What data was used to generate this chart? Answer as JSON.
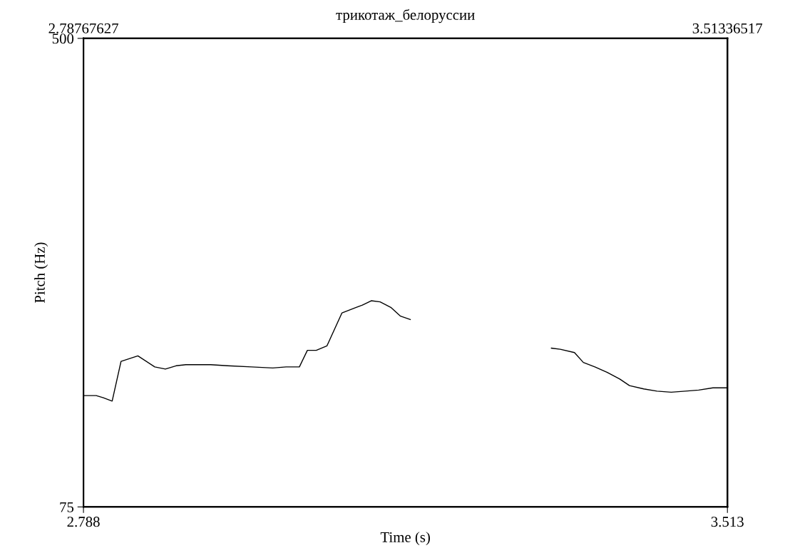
{
  "chart_data": {
    "type": "line",
    "title": "трикотаж_белоруссии",
    "xlabel": "Time (s)",
    "ylabel": "Pitch (Hz)",
    "xlim": [
      2.78767627,
      3.51336517
    ],
    "xticks": [
      {
        "value": 2.78767627,
        "label": "2.788"
      },
      {
        "value": 3.51336517,
        "label": "3.513"
      }
    ],
    "x2lim": [
      2.78767627,
      3.51336517
    ],
    "x2ticks": [
      2.78767627,
      3.51336517
    ],
    "ylim": [
      75,
      500
    ],
    "yticks": [
      75,
      500
    ],
    "legend": false,
    "marker": "none",
    "line_style": "solid",
    "series": [
      {
        "color": "#000000",
        "x": [
          2.788,
          2.802,
          2.81,
          2.82,
          2.83,
          2.849,
          2.868,
          2.88,
          2.892,
          2.903,
          2.919,
          2.931,
          2.95,
          2.977,
          3.001,
          3.016,
          3.031,
          3.04,
          3.05,
          3.062,
          3.079,
          3.095,
          3.102,
          3.112,
          3.122,
          3.134,
          3.145,
          3.156,
          3.23,
          3.315,
          3.325,
          3.341,
          3.351,
          3.364,
          3.378,
          3.392,
          3.403,
          3.419,
          3.434,
          3.45,
          3.466,
          3.481,
          3.497,
          3.513
        ],
        "values": [
          176,
          176,
          174,
          171,
          207,
          212,
          202,
          200,
          203,
          204,
          204,
          204,
          203,
          202,
          201,
          202,
          202,
          217,
          217,
          221,
          251,
          256,
          258,
          262,
          261,
          256,
          248,
          245,
          null,
          219,
          218,
          215,
          206,
          202,
          197,
          191,
          185,
          182,
          180,
          179,
          180,
          181,
          183,
          183
        ]
      }
    ]
  }
}
